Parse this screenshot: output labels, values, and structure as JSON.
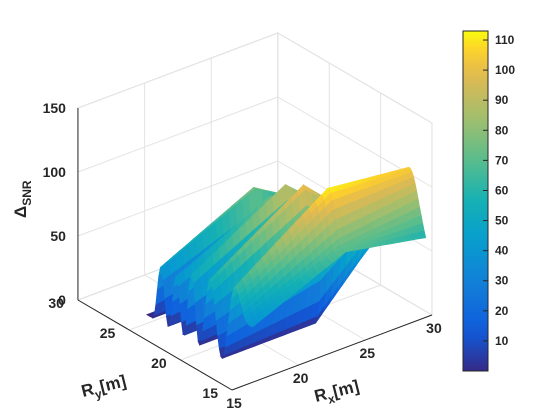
{
  "chart_data": {
    "type": "surface",
    "title": "",
    "xlabel": {
      "base": "R",
      "sub": "x",
      "rest": "[m]"
    },
    "ylabel": {
      "base": "R",
      "sub": "y",
      "rest": "[m]"
    },
    "zlabel": {
      "base": "Δ",
      "sub": "SNR"
    },
    "x_range": [
      15,
      30
    ],
    "y_range": [
      15,
      30
    ],
    "z_range": [
      0,
      150
    ],
    "x_ticks": [
      15,
      20,
      25,
      30
    ],
    "y_ticks": [
      15,
      20,
      25,
      30
    ],
    "z_ticks": [
      0,
      50,
      100,
      150
    ],
    "colorbar": {
      "ticks": [
        10,
        20,
        30,
        40,
        50,
        60,
        70,
        80,
        90,
        100,
        110
      ],
      "range": [
        0,
        113
      ],
      "colormap": "parula"
    },
    "surface_profile": {
      "description_units": "Delta_SNR along Ry for Rx from about 17 to 30",
      "peaks": [
        {
          "ry": 24.5,
          "value": 80
        },
        {
          "ry": 23.0,
          "value": 80
        },
        {
          "ry": 21.5,
          "value": 95
        },
        {
          "ry": 19.7,
          "value": 103
        },
        {
          "ry": 17.3,
          "value": 112
        },
        {
          "ry": 16.0,
          "value": 70
        }
      ],
      "troughs": [
        {
          "ry": 25.3,
          "value": 0
        },
        {
          "ry": 23.8,
          "value": 0
        },
        {
          "ry": 22.3,
          "value": 0
        },
        {
          "ry": 20.8,
          "value": 0
        },
        {
          "ry": 18.6,
          "value": 0
        }
      ],
      "plateau": {
        "rx": [
          24,
          30
        ],
        "value_range": [
          40,
          105
        ]
      }
    },
    "grid": true
  }
}
